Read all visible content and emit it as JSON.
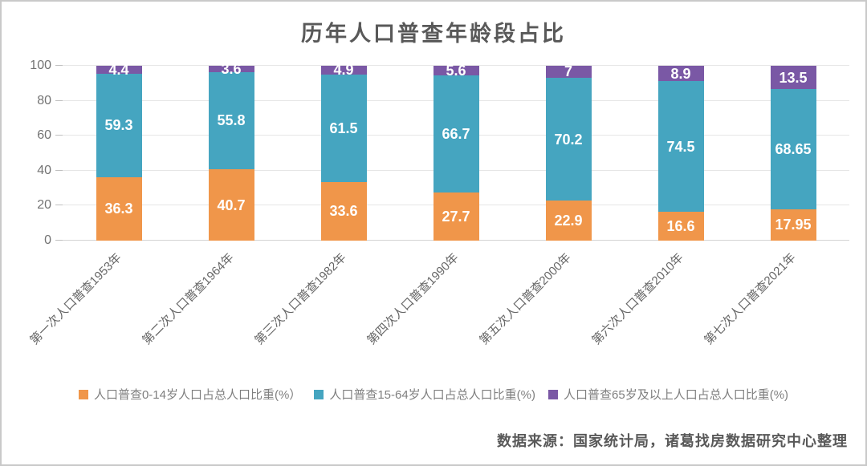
{
  "title": "历年人口普查年龄段占比",
  "source": "数据来源：国家统计局，诸葛找房数据研究中心整理",
  "colors": {
    "age_0_14": "#f0964a",
    "age_15_64": "#45a5c0",
    "age_65_plus": "#7a58a5",
    "title_text": "#595959",
    "axis_text": "#737373",
    "gridline": "#e6e6e6"
  },
  "chart_data": {
    "type": "bar",
    "stacked": true,
    "title": "历年人口普查年龄段占比",
    "categories": [
      "第一次人口普查1953年",
      "第二次人口普查1964年",
      "第三次人口普查1982年",
      "第四次人口普查1990年",
      "第五次人口普查2000年",
      "第六次人口普查2010年",
      "第七次人口普查2021年"
    ],
    "series": [
      {
        "name": "人口普查0-14岁人口占总人口比重(%）",
        "color_key": "age_0_14",
        "values": [
          36.3,
          40.7,
          33.6,
          27.7,
          22.9,
          16.6,
          17.95
        ]
      },
      {
        "name": "人口普查15-64岁人口占总人口比重(%)",
        "color_key": "age_15_64",
        "values": [
          59.3,
          55.8,
          61.5,
          66.7,
          70.2,
          74.5,
          68.65
        ]
      },
      {
        "name": "人口普查65岁及以上人口占总人口比重(%)",
        "color_key": "age_65_plus",
        "values": [
          4.4,
          3.6,
          4.9,
          5.6,
          7,
          8.9,
          13.5
        ]
      }
    ],
    "xlabel": "",
    "ylabel": "",
    "ylim": [
      0,
      100
    ],
    "yticks": [
      0,
      20,
      40,
      60,
      80,
      100
    ],
    "grid": true,
    "legend_position": "bottom",
    "data_labels": true
  }
}
